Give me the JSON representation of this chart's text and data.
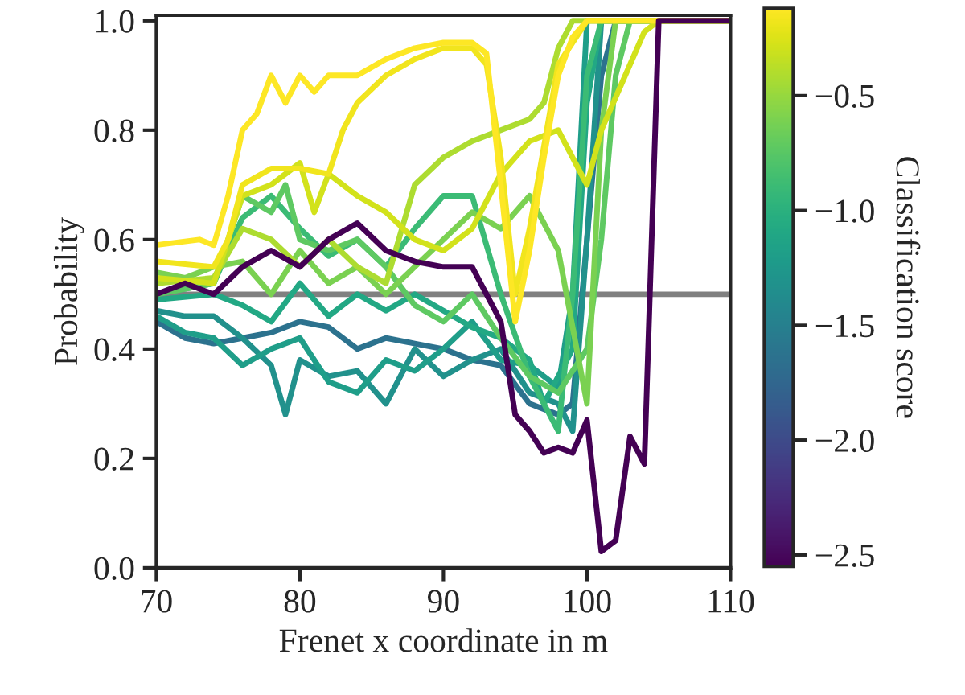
{
  "chart_data": {
    "type": "line",
    "xlabel": "Frenet x coordinate in m",
    "ylabel": "Probability",
    "clabel": "Classification score",
    "xlim": [
      70,
      110
    ],
    "xticks": [
      70,
      80,
      90,
      100,
      110
    ],
    "ylim": [
      0,
      1.01
    ],
    "yticks": [
      {
        "value": 0,
        "label": "0.0"
      },
      {
        "value": 0.2,
        "label": "0.2"
      },
      {
        "value": 0.4,
        "label": "0.4"
      },
      {
        "value": 0.6,
        "label": "0.6"
      },
      {
        "value": 0.8,
        "label": "0.8"
      },
      {
        "value": 1.0,
        "label": "1.0"
      }
    ],
    "clim": [
      -2.55,
      -0.12
    ],
    "cticks": [
      {
        "value": -2.5,
        "label": "−2.5"
      },
      {
        "value": -2.0,
        "label": "−2.0"
      },
      {
        "value": -1.5,
        "label": "−1.5"
      },
      {
        "value": -1.0,
        "label": "−1.0"
      },
      {
        "value": -0.5,
        "label": "−0.5"
      }
    ],
    "grid": false,
    "legend": false,
    "marker": "none",
    "line_style": "solid",
    "ref_lines": [
      {
        "axis": "y",
        "value": 0.5,
        "color": "#808080"
      }
    ],
    "series": [
      {
        "color": "#2c728e",
        "x": [
          70,
          72,
          74,
          76,
          78,
          80,
          82,
          84,
          86,
          88,
          90,
          92,
          94,
          96,
          98,
          99,
          100,
          101,
          102,
          110
        ],
        "values": [
          0.45,
          0.42,
          0.41,
          0.42,
          0.43,
          0.45,
          0.44,
          0.4,
          0.42,
          0.41,
          0.4,
          0.38,
          0.37,
          0.3,
          0.28,
          0.3,
          0.6,
          0.9,
          1.0,
          1.0
        ]
      },
      {
        "color": "#21918c",
        "x": [
          70,
          72,
          74,
          76,
          78,
          79,
          80,
          82,
          84,
          86,
          88,
          90,
          92,
          94,
          96,
          98,
          99,
          100,
          101,
          110
        ],
        "values": [
          0.47,
          0.46,
          0.46,
          0.42,
          0.37,
          0.28,
          0.38,
          0.35,
          0.36,
          0.3,
          0.4,
          0.35,
          0.38,
          0.4,
          0.32,
          0.3,
          0.25,
          0.6,
          1.0,
          1.0
        ]
      },
      {
        "color": "#1f9e89",
        "x": [
          70,
          72,
          74,
          76,
          78,
          80,
          82,
          84,
          86,
          88,
          90,
          92,
          94,
          96,
          98,
          99,
          100,
          110
        ],
        "values": [
          0.46,
          0.43,
          0.42,
          0.37,
          0.4,
          0.42,
          0.34,
          0.32,
          0.38,
          0.36,
          0.4,
          0.45,
          0.38,
          0.37,
          0.33,
          0.5,
          1.0,
          1.0
        ]
      },
      {
        "color": "#22a884",
        "x": [
          70,
          74,
          76,
          78,
          80,
          82,
          84,
          86,
          88,
          90,
          92,
          94,
          96,
          97,
          99,
          100,
          101,
          110
        ],
        "values": [
          0.49,
          0.5,
          0.48,
          0.45,
          0.52,
          0.46,
          0.5,
          0.47,
          0.5,
          0.47,
          0.44,
          0.42,
          0.38,
          0.3,
          0.4,
          0.85,
          1.0,
          1.0
        ]
      },
      {
        "color": "#3bbb75",
        "x": [
          70,
          74,
          76,
          78,
          80,
          82,
          84,
          86,
          88,
          90,
          92,
          94,
          96,
          98,
          99,
          100,
          101,
          110
        ],
        "values": [
          0.5,
          0.52,
          0.64,
          0.68,
          0.62,
          0.57,
          0.6,
          0.55,
          0.62,
          0.68,
          0.68,
          0.5,
          0.35,
          0.25,
          0.5,
          0.9,
          1.0,
          1.0
        ]
      },
      {
        "color": "#5ec962",
        "x": [
          70,
          74,
          76,
          78,
          79,
          80,
          82,
          84,
          86,
          88,
          90,
          92,
          94,
          96,
          98,
          100,
          101,
          102,
          103,
          110
        ],
        "values": [
          0.5,
          0.52,
          0.68,
          0.65,
          0.7,
          0.6,
          0.58,
          0.6,
          0.55,
          0.48,
          0.45,
          0.5,
          0.42,
          0.35,
          0.32,
          0.4,
          0.6,
          0.9,
          1.0,
          1.0
        ]
      },
      {
        "color": "#7ad151",
        "x": [
          70,
          72,
          74,
          76,
          78,
          80,
          82,
          84,
          86,
          88,
          90,
          92,
          94,
          96,
          98,
          100,
          101,
          102,
          110
        ],
        "values": [
          0.54,
          0.53,
          0.55,
          0.56,
          0.5,
          0.58,
          0.52,
          0.55,
          0.5,
          0.55,
          0.6,
          0.65,
          0.62,
          0.68,
          0.58,
          0.3,
          0.8,
          1.0,
          1.0
        ]
      },
      {
        "color": "#addc30",
        "x": [
          70,
          74,
          76,
          78,
          80,
          82,
          84,
          86,
          88,
          90,
          92,
          94,
          96,
          97,
          98,
          99,
          110
        ],
        "values": [
          0.52,
          0.53,
          0.62,
          0.6,
          0.55,
          0.6,
          0.55,
          0.52,
          0.7,
          0.75,
          0.78,
          0.8,
          0.82,
          0.85,
          0.95,
          1.0,
          1.0
        ]
      },
      {
        "color": "#d2e21b",
        "x": [
          70,
          74,
          76,
          78,
          80,
          81,
          82,
          84,
          86,
          88,
          90,
          92,
          94,
          96,
          98,
          100,
          101,
          104,
          105,
          110
        ],
        "values": [
          0.53,
          0.52,
          0.68,
          0.7,
          0.74,
          0.65,
          0.72,
          0.68,
          0.65,
          0.6,
          0.58,
          0.62,
          0.72,
          0.78,
          0.8,
          0.7,
          0.8,
          0.98,
          1.0,
          1.0
        ]
      },
      {
        "color": "#f1e51d",
        "x": [
          70,
          74,
          75,
          76,
          78,
          80,
          82,
          83,
          84,
          86,
          88,
          90,
          92,
          93,
          94,
          95,
          96,
          98,
          100,
          110
        ],
        "values": [
          0.56,
          0.55,
          0.6,
          0.7,
          0.73,
          0.73,
          0.72,
          0.8,
          0.85,
          0.9,
          0.93,
          0.95,
          0.95,
          0.92,
          0.75,
          0.5,
          0.62,
          0.92,
          1.0,
          1.0
        ]
      },
      {
        "color": "#fde725",
        "x": [
          70,
          73,
          74,
          75,
          76,
          77,
          78,
          79,
          80,
          81,
          82,
          84,
          86,
          88,
          90,
          92,
          93,
          94,
          95,
          96,
          97,
          98,
          99,
          100,
          110
        ],
        "values": [
          0.59,
          0.6,
          0.59,
          0.68,
          0.8,
          0.83,
          0.9,
          0.85,
          0.9,
          0.87,
          0.9,
          0.9,
          0.93,
          0.95,
          0.96,
          0.96,
          0.94,
          0.7,
          0.45,
          0.58,
          0.75,
          0.9,
          0.97,
          1.0,
          1.0
        ]
      },
      {
        "color": "#440154",
        "x": [
          70,
          72,
          74,
          76,
          78,
          80,
          82,
          84,
          86,
          88,
          90,
          92,
          93,
          94,
          95,
          96,
          97,
          98,
          99,
          100,
          101,
          102,
          103,
          104,
          105,
          110
        ],
        "values": [
          0.5,
          0.52,
          0.5,
          0.55,
          0.58,
          0.55,
          0.6,
          0.63,
          0.58,
          0.56,
          0.55,
          0.55,
          0.5,
          0.45,
          0.28,
          0.25,
          0.21,
          0.22,
          0.21,
          0.27,
          0.03,
          0.05,
          0.24,
          0.19,
          1.0,
          1.0
        ]
      }
    ]
  }
}
